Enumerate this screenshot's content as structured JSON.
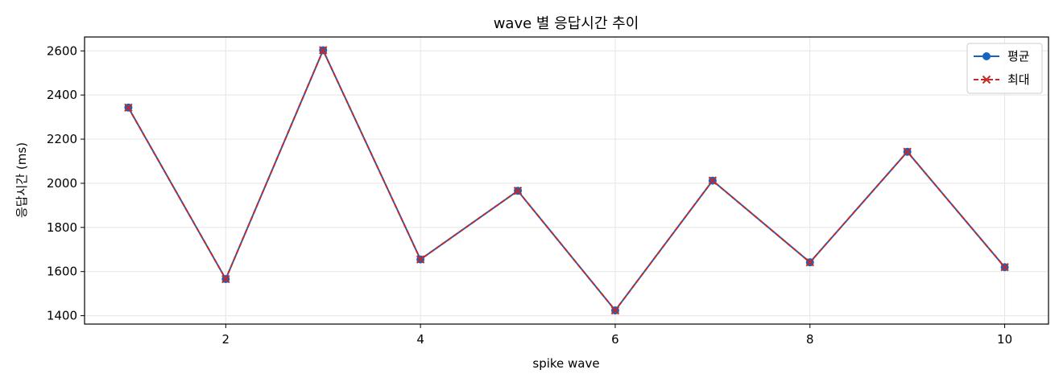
{
  "chart_data": {
    "type": "line",
    "title": "wave 별 응답시간 추이",
    "xlabel": "spike wave",
    "ylabel": "응답시간 (ms)",
    "x": [
      1,
      2,
      3,
      4,
      5,
      6,
      7,
      8,
      9,
      10
    ],
    "xticks": [
      2,
      4,
      6,
      8,
      10
    ],
    "yticks": [
      1400,
      1600,
      1800,
      2000,
      2200,
      2400,
      2600
    ],
    "xlim": [
      0.55,
      10.45
    ],
    "ylim": [
      1362,
      2663
    ],
    "grid": true,
    "legend_position": "top-right",
    "series": [
      {
        "name": "평균",
        "color": "#1565c0",
        "marker": "circle",
        "line_style": "solid",
        "values": [
          2343,
          1566,
          2603,
          1655,
          1966,
          1424,
          2012,
          1642,
          2143,
          1620
        ]
      },
      {
        "name": "최대",
        "color": "#c62828",
        "marker": "x",
        "line_style": "dashed",
        "values": [
          2343,
          1566,
          2603,
          1655,
          1966,
          1424,
          2012,
          1642,
          2143,
          1620
        ]
      }
    ]
  }
}
